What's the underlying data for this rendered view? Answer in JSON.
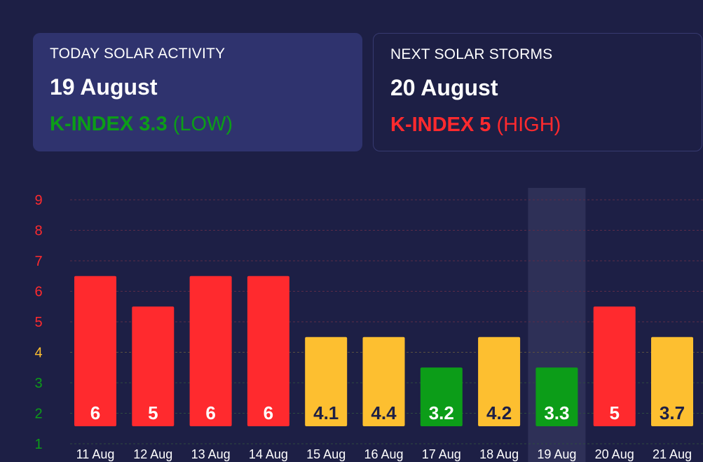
{
  "today": {
    "label": "TODAY SOLAR ACTIVITY",
    "date": "19 August",
    "k_label": "K-INDEX 3.3",
    "level": " (LOW)"
  },
  "next": {
    "label": "NEXT SOLAR STORMS",
    "date": "20 August",
    "k_label": "K-INDEX 5",
    "level": " (HIGH)"
  },
  "colors": {
    "low": "#0c9d18",
    "moderate": "#fdbf30",
    "high": "#ff2a2e",
    "background": "#1d1f45",
    "today_card": "#2f336e",
    "highlight": "#2e3057"
  },
  "chart_data": {
    "type": "bar",
    "categories": [
      "11 Aug",
      "12 Aug",
      "13 Aug",
      "14 Aug",
      "15 Aug",
      "16 Aug",
      "17 Aug",
      "18 Aug",
      "19 Aug",
      "20 Aug",
      "21 Aug"
    ],
    "values": [
      6,
      5,
      6,
      6,
      4,
      4,
      3,
      4,
      3,
      5,
      4
    ],
    "data_labels": [
      "6",
      "5",
      "6",
      "6",
      "4.1",
      "4.4",
      "3.2",
      "4.2",
      "3.3",
      "5",
      "3.7"
    ],
    "levels": [
      "high",
      "high",
      "high",
      "high",
      "moderate",
      "moderate",
      "low",
      "moderate",
      "low",
      "high",
      "moderate"
    ],
    "y_ticks": [
      1,
      2,
      3,
      4,
      5,
      6,
      7,
      8,
      9
    ],
    "ylim": [
      1,
      9
    ],
    "highlighted_category": "19 Aug",
    "grid": "horizontal dashed"
  }
}
